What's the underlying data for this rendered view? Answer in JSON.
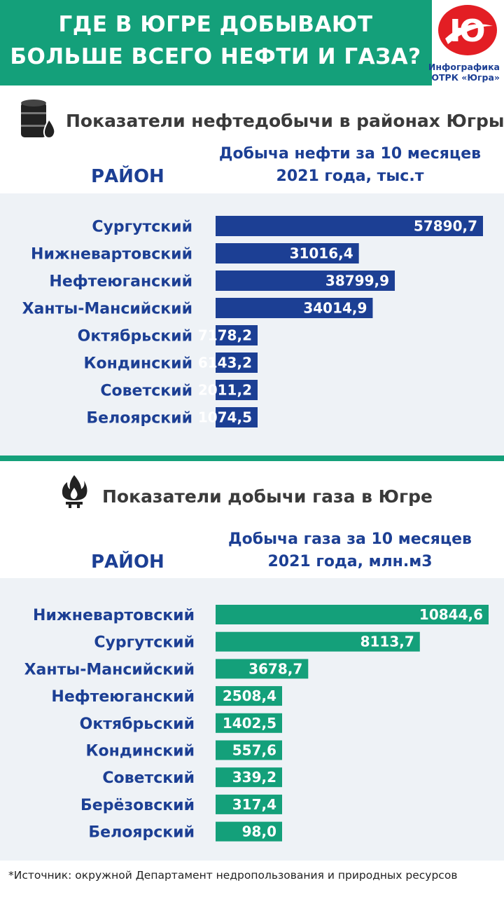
{
  "header": {
    "title_line1": "ГДЕ В ЮГРЕ ДОБЫВАЮТ",
    "title_line2": "БОЛЬШЕ ВСЕГО НЕФТИ И ГАЗА?",
    "logo_caption_line1": "Инфографика",
    "logo_caption_line2": "ОТРК «Югра»",
    "logo_letter": "Ю"
  },
  "oil": {
    "section_title": "Показатели нефтедобычи в районах Югры",
    "column_label": "РАЙОН",
    "value_header_line1": "Добыча нефти за 10 месяцев",
    "value_header_line2": "2021 года, тыс.т",
    "icon": "oil-barrel-icon"
  },
  "gas": {
    "section_title": "Показатели добычи газа в Югре",
    "column_label": "РАЙОН",
    "value_header_line1": "Добыча газа за 10 месяцев",
    "value_header_line2": "2021 года, млн.м3",
    "icon": "gas-flame-icon"
  },
  "footer": {
    "source": "*Источник:  окружной Департамент недропользования и природных ресурсов"
  },
  "colors": {
    "green": "#14a07a",
    "blue": "#1c3f94",
    "red": "#e31e24",
    "panel": "#eef2f6"
  },
  "chart_data": [
    {
      "type": "bar",
      "orientation": "horizontal",
      "categories": [
        "Сургутский",
        "Нижневартовский",
        "Нефтеюганский",
        "Ханты-Мансийский",
        "Октябрьский",
        "Кондинский",
        "Советский",
        "Белоярский"
      ],
      "values": [
        57890.7,
        31016.4,
        38799.9,
        34014.9,
        7178.2,
        6143.2,
        2011.2,
        1074.5
      ],
      "labels": [
        "57890,7",
        "31016,4",
        "38799,9",
        "34014,9",
        "7178,2",
        "6143,2",
        "2011,2",
        "1074,5"
      ],
      "color": "#1c3f94"
    },
    {
      "type": "bar",
      "orientation": "horizontal",
      "categories": [
        "Нижневартовский",
        "Сургутский",
        "Ханты-Мансийский",
        "Нефтеюганский",
        "Октябрьский",
        "Кондинский",
        "Советский",
        "Берёзовский",
        "Белоярский"
      ],
      "values": [
        10844.6,
        8113.7,
        3678.7,
        2508.4,
        1402.5,
        557.6,
        339.2,
        317.4,
        98.0
      ],
      "labels": [
        "10844,6",
        "8113,7",
        "3678,7",
        "2508,4",
        "1402,5",
        "557,6",
        "339,2",
        "317,4",
        "98,0"
      ],
      "color": "#14a07a"
    }
  ]
}
